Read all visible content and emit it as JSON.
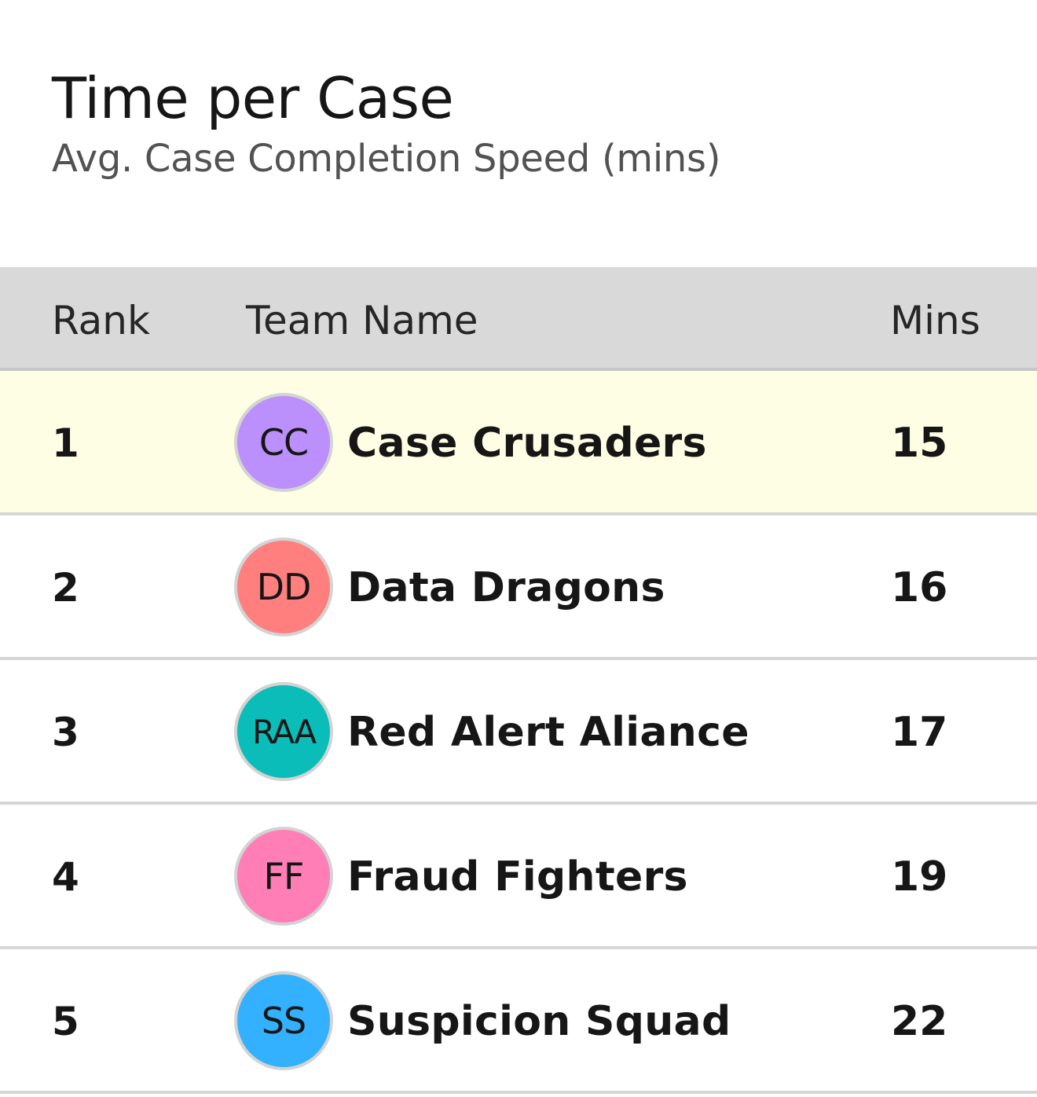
{
  "header": {
    "title": "Time per Case",
    "subtitle": "Avg. Case Completion Speed (mins)"
  },
  "table": {
    "columns": {
      "rank": "Rank",
      "team": "Team Name",
      "mins": "Mins"
    },
    "rows": [
      {
        "rank": "1",
        "initials": "CC",
        "name": "Case Crusaders",
        "mins": "15",
        "color": "#bb8ffc",
        "highlight": true
      },
      {
        "rank": "2",
        "initials": "DD",
        "name": "Data Dragons",
        "mins": "16",
        "color": "#ff7f7f",
        "highlight": false
      },
      {
        "rank": "3",
        "initials": "RAA",
        "name": "Red Alert Aliance",
        "mins": "17",
        "color": "#0bbdb8",
        "highlight": false
      },
      {
        "rank": "4",
        "initials": "FF",
        "name": "Fraud Fighters",
        "mins": "19",
        "color": "#ff7eb6",
        "highlight": false
      },
      {
        "rank": "5",
        "initials": "SS",
        "name": "Suspicion Squad",
        "mins": "22",
        "color": "#33b1ff",
        "highlight": false
      }
    ]
  },
  "colors": {
    "header_bg": "#d9d9d9",
    "highlight_row_bg": "#fefee4"
  }
}
